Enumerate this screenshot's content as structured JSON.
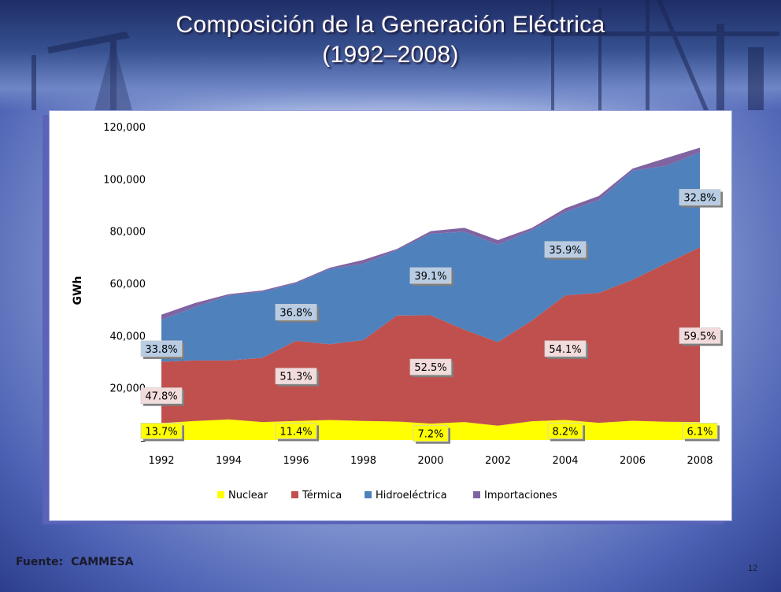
{
  "slide": {
    "title_line1": "Composición de la Generación Eléctrica",
    "title_line2": "(1992–2008)",
    "source_label": "Fuente:",
    "source_value": "CAMMESA",
    "page_number": "12",
    "colors": {
      "title_text": "#ffffff",
      "panel_shadow": "#5a63b8"
    }
  },
  "chart_data": {
    "type": "area",
    "stacked": true,
    "ylabel": "GWh",
    "ylim": [
      0,
      120000
    ],
    "y_ticks": [
      "–",
      "20,000",
      "40,000",
      "60,000",
      "80,000",
      "100,000",
      "120,000"
    ],
    "y_tick_values": [
      0,
      20000,
      40000,
      60000,
      80000,
      100000,
      120000
    ],
    "x": [
      1992,
      1993,
      1994,
      1995,
      1996,
      1997,
      1998,
      1999,
      2000,
      2001,
      2002,
      2003,
      2004,
      2005,
      2006,
      2007,
      2008
    ],
    "x_tick_labels": [
      "1992",
      "1994",
      "1996",
      "1998",
      "2000",
      "2002",
      "2004",
      "2006",
      "2008"
    ],
    "x_tick_values": [
      1992,
      1994,
      1996,
      1998,
      2000,
      2002,
      2004,
      2006,
      2008
    ],
    "series": [
      {
        "name": "Nuclear",
        "color": "#ffff00",
        "values": [
          6500,
          7300,
          7900,
          6900,
          7300,
          7700,
          7300,
          7100,
          6300,
          6900,
          5500,
          7200,
          7700,
          6600,
          7400,
          7000,
          6900
        ]
      },
      {
        "name": "Térmica",
        "color": "#c0504d",
        "values": [
          23500,
          23200,
          22600,
          24600,
          30700,
          29000,
          31000,
          40600,
          41500,
          35400,
          32000,
          38500,
          47700,
          49800,
          54000,
          60700,
          66900
        ]
      },
      {
        "name": "Hidroeléctrica",
        "color": "#4f81bd",
        "values": [
          16000,
          20500,
          24900,
          25300,
          22000,
          28800,
          29200,
          25000,
          31200,
          37500,
          37300,
          34700,
          31900,
          35600,
          41800,
          37300,
          36400
        ]
      },
      {
        "name": "Importaciones",
        "color": "#8064a2",
        "values": [
          2000,
          1500,
          500,
          500,
          500,
          500,
          1500,
          500,
          1000,
          1500,
          1800,
          800,
          1500,
          1500,
          800,
          3000,
          1800
        ]
      }
    ],
    "data_labels": [
      {
        "text": "13.7%",
        "series": "Nuclear",
        "x": 1992,
        "y": 3500
      },
      {
        "text": "11.4%",
        "series": "Nuclear",
        "x": 1996,
        "y": 3500
      },
      {
        "text": "7.2%",
        "series": "Nuclear",
        "x": 2000,
        "y": 2500
      },
      {
        "text": "8.2%",
        "series": "Nuclear",
        "x": 2004,
        "y": 3500
      },
      {
        "text": "6.1%",
        "series": "Nuclear",
        "x": 2008,
        "y": 3500
      },
      {
        "text": "47.8%",
        "series": "Térmica",
        "x": 1992,
        "y": 17000
      },
      {
        "text": "51.3%",
        "series": "Térmica",
        "x": 1996,
        "y": 24500
      },
      {
        "text": "52.5%",
        "series": "Térmica",
        "x": 2000,
        "y": 28000
      },
      {
        "text": "54.1%",
        "series": "Térmica",
        "x": 2004,
        "y": 35000
      },
      {
        "text": "59.5%",
        "series": "Térmica",
        "x": 2008,
        "y": 40000
      },
      {
        "text": "33.8%",
        "series": "Hidroeléctrica",
        "x": 1992,
        "y": 35000
      },
      {
        "text": "36.8%",
        "series": "Hidroeléctrica",
        "x": 1996,
        "y": 49000
      },
      {
        "text": "39.1%",
        "series": "Hidroeléctrica",
        "x": 2000,
        "y": 63000
      },
      {
        "text": "35.9%",
        "series": "Hidroeléctrica",
        "x": 2004,
        "y": 73000
      },
      {
        "text": "32.8%",
        "series": "Hidroeléctrica",
        "x": 2008,
        "y": 93000
      }
    ],
    "label_bg": {
      "Nuclear": "#ffff00",
      "Térmica": "#f2dcdb",
      "Hidroeléctrica": "#b8cce4"
    },
    "legend": {
      "position": "bottom",
      "entries": [
        "Nuclear",
        "Térmica",
        "Hidroeléctrica",
        "Importaciones"
      ]
    },
    "grid": false
  }
}
